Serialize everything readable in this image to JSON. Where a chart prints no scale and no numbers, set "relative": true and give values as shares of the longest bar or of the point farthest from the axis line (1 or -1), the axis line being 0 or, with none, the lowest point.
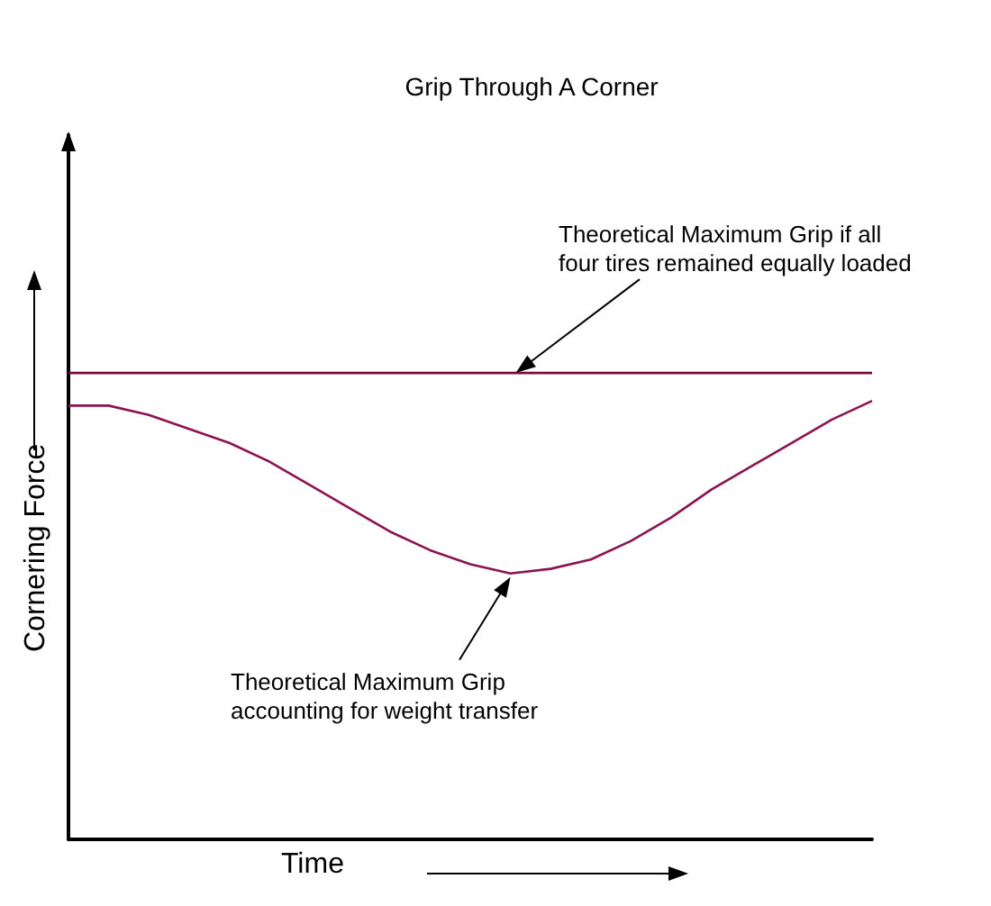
{
  "chart_data": {
    "type": "line",
    "title": "Grip Through A Corner",
    "xlabel": "Time",
    "ylabel": "Cornering Force",
    "relative": true,
    "marker": "none",
    "line_style": "solid",
    "categories": [
      null,
      null,
      null,
      null,
      null,
      null,
      null,
      null,
      null,
      null,
      null,
      null,
      null,
      null,
      null,
      null,
      null,
      null,
      null,
      null,
      null
    ],
    "series": [
      {
        "color": "#800a3c",
        "values": [
          1,
          1,
          1,
          1,
          1,
          1,
          1,
          1,
          1,
          1,
          1,
          1,
          1,
          1,
          1,
          1,
          1,
          1,
          1,
          1,
          1
        ]
      },
      {
        "color": "#8b1450",
        "values": [
          0.93,
          0.93,
          0.91,
          0.88,
          0.85,
          0.81,
          0.76,
          0.71,
          0.66,
          0.62,
          0.59,
          0.57,
          0.58,
          0.6,
          0.64,
          0.69,
          0.75,
          0.8,
          0.85,
          0.9,
          0.94
        ]
      }
    ],
    "annotations": [
      "Theoretical Maximum Grip if all\nfour tires remained equally loaded",
      "Theoretical Maximum Grip\naccounting for weight transfer"
    ]
  }
}
